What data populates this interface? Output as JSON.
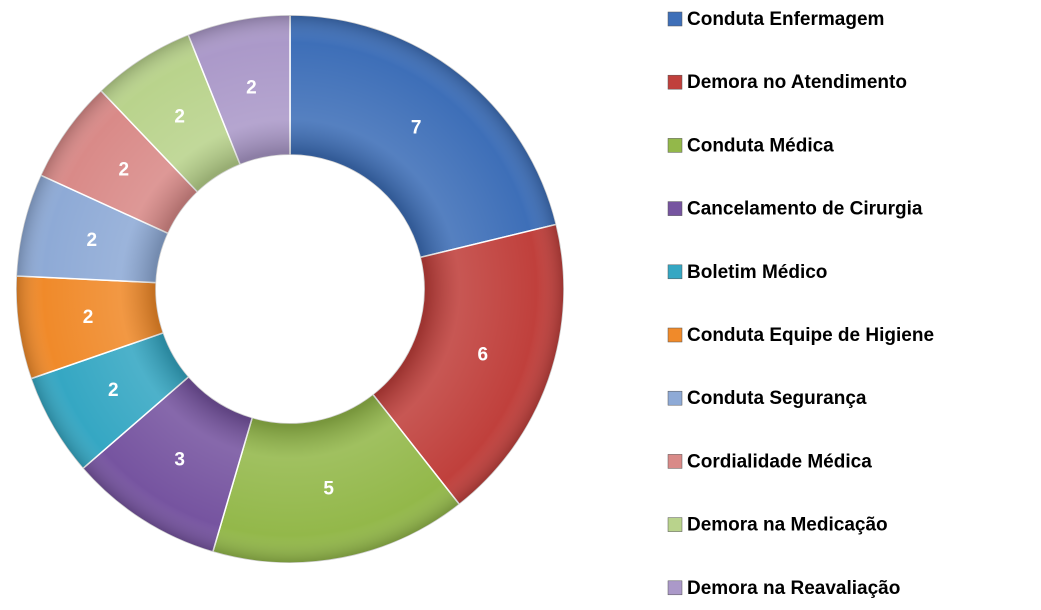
{
  "chart_data": {
    "type": "donut",
    "categories": [
      "Conduta Enfermagem",
      "Demora no Atendimento",
      "Conduta Médica",
      "Cancelamento de Cirurgia",
      "Boletim Médico",
      "Conduta Equipe de Higiene",
      "Conduta Segurança",
      "Cordialidade Médica",
      "Demora na Medicação",
      "Demora na Reavaliação"
    ],
    "values": [
      7,
      6,
      5,
      3,
      2,
      2,
      2,
      2,
      2,
      2
    ],
    "colors": [
      "#3e6fb8",
      "#c0403c",
      "#93b84a",
      "#7654a0",
      "#35a7c3",
      "#f08a2a",
      "#8eaad6",
      "#d98a88",
      "#b9d38c",
      "#ab99c9"
    ],
    "legend": "right"
  }
}
